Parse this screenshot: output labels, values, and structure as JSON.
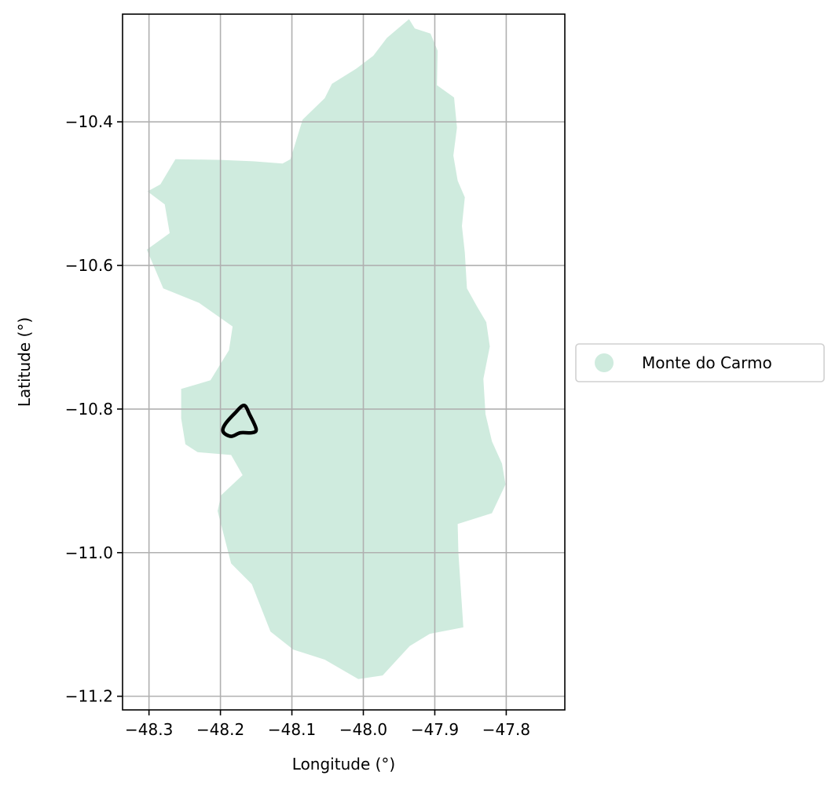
{
  "chart_data": {
    "type": "map",
    "xlabel": "Longitude (°)",
    "ylabel": "Latitude (°)",
    "xlim": [
      -48.337,
      -47.718
    ],
    "ylim": [
      -11.219,
      -10.25
    ],
    "grid": true,
    "x_ticks": [
      -48.3,
      -48.2,
      -48.1,
      -48.0,
      -47.9,
      -47.8
    ],
    "x_tick_labels": [
      "−48.3",
      "−48.2",
      "−48.1",
      "−48.0",
      "−47.9",
      "−47.8"
    ],
    "y_ticks": [
      -10.4,
      -10.6,
      -10.8,
      -11.0,
      -11.2
    ],
    "y_tick_labels": [
      "−10.4",
      "−10.6",
      "−10.8",
      "−11.0",
      "−11.2"
    ],
    "legend": {
      "placement": "right",
      "entries": [
        {
          "label": "Monte do Carmo",
          "color": "#cfebde"
        }
      ]
    },
    "region": {
      "name": "Monte do Carmo",
      "fill": "#cfebde",
      "outline": [
        [
          -47.936,
          -10.257
        ],
        [
          -47.928,
          -10.27
        ],
        [
          -47.906,
          -10.277
        ],
        [
          -47.896,
          -10.301
        ],
        [
          -47.897,
          -10.349
        ],
        [
          -47.873,
          -10.366
        ],
        [
          -47.869,
          -10.408
        ],
        [
          -47.874,
          -10.447
        ],
        [
          -47.868,
          -10.482
        ],
        [
          -47.858,
          -10.505
        ],
        [
          -47.862,
          -10.545
        ],
        [
          -47.858,
          -10.582
        ],
        [
          -47.855,
          -10.632
        ],
        [
          -47.841,
          -10.657
        ],
        [
          -47.828,
          -10.679
        ],
        [
          -47.823,
          -10.713
        ],
        [
          -47.832,
          -10.758
        ],
        [
          -47.829,
          -10.807
        ],
        [
          -47.82,
          -10.845
        ],
        [
          -47.806,
          -10.876
        ],
        [
          -47.801,
          -10.905
        ],
        [
          -47.82,
          -10.945
        ],
        [
          -47.868,
          -10.96
        ],
        [
          -47.867,
          -11.0
        ],
        [
          -47.86,
          -11.104
        ],
        [
          -47.907,
          -11.113
        ],
        [
          -47.935,
          -11.13
        ],
        [
          -47.973,
          -11.171
        ],
        [
          -48.007,
          -11.176
        ],
        [
          -48.054,
          -11.149
        ],
        [
          -48.098,
          -11.135
        ],
        [
          -48.13,
          -11.11
        ],
        [
          -48.156,
          -11.044
        ],
        [
          -48.185,
          -11.015
        ],
        [
          -48.204,
          -10.942
        ],
        [
          -48.199,
          -10.92
        ],
        [
          -48.169,
          -10.892
        ],
        [
          -48.185,
          -10.864
        ],
        [
          -48.232,
          -10.86
        ],
        [
          -48.249,
          -10.849
        ],
        [
          -48.255,
          -10.813
        ],
        [
          -48.255,
          -10.772
        ],
        [
          -48.214,
          -10.76
        ],
        [
          -48.188,
          -10.718
        ],
        [
          -48.183,
          -10.685
        ],
        [
          -48.23,
          -10.652
        ],
        [
          -48.28,
          -10.632
        ],
        [
          -48.303,
          -10.578
        ],
        [
          -48.271,
          -10.555
        ],
        [
          -48.278,
          -10.515
        ],
        [
          -48.302,
          -10.497
        ],
        [
          -48.284,
          -10.487
        ],
        [
          -48.263,
          -10.452
        ],
        [
          -48.2,
          -10.453
        ],
        [
          -48.154,
          -10.455
        ],
        [
          -48.113,
          -10.458
        ],
        [
          -48.102,
          -10.452
        ],
        [
          -48.085,
          -10.397
        ],
        [
          -48.054,
          -10.367
        ],
        [
          -48.044,
          -10.347
        ],
        [
          -48.01,
          -10.326
        ],
        [
          -47.986,
          -10.308
        ],
        [
          -47.967,
          -10.283
        ]
      ]
    },
    "marker": {
      "outline": [
        [
          -48.167,
          -10.795
        ],
        [
          -48.159,
          -10.808
        ],
        [
          -48.15,
          -10.828
        ],
        [
          -48.156,
          -10.833
        ],
        [
          -48.172,
          -10.833
        ],
        [
          -48.185,
          -10.838
        ],
        [
          -48.196,
          -10.832
        ],
        [
          -48.194,
          -10.822
        ],
        [
          -48.18,
          -10.806
        ]
      ],
      "stroke": "#000000"
    }
  }
}
